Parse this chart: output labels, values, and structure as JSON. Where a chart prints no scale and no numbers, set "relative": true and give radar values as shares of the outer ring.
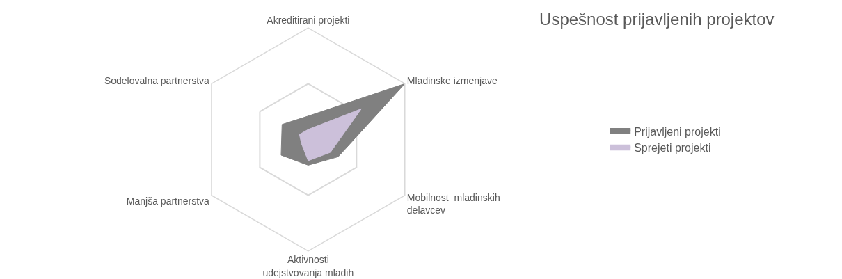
{
  "chart_data": {
    "type": "radar",
    "title": "Uspešnost prijavljenih projektov",
    "relative": true,
    "categories": [
      "Akreditirani projekti",
      "Mladinske izmenjave",
      "Mobilnost  mladinskih delavcev",
      "Aktivnosti udejstvovanja mladih",
      "Manjša partnerstva",
      "Sodelovalna partnerstva"
    ],
    "series": [
      {
        "name": "Prijavljeni projekti",
        "color": "#808080",
        "values": [
          0.21,
          1.0,
          0.31,
          0.23,
          0.28,
          0.27
        ]
      },
      {
        "name": "Sprejeti projekti",
        "color": "#ccc0da",
        "values": [
          0.09,
          0.55,
          0.23,
          0.19,
          0.07,
          0.09
        ]
      }
    ],
    "legend": "right"
  }
}
